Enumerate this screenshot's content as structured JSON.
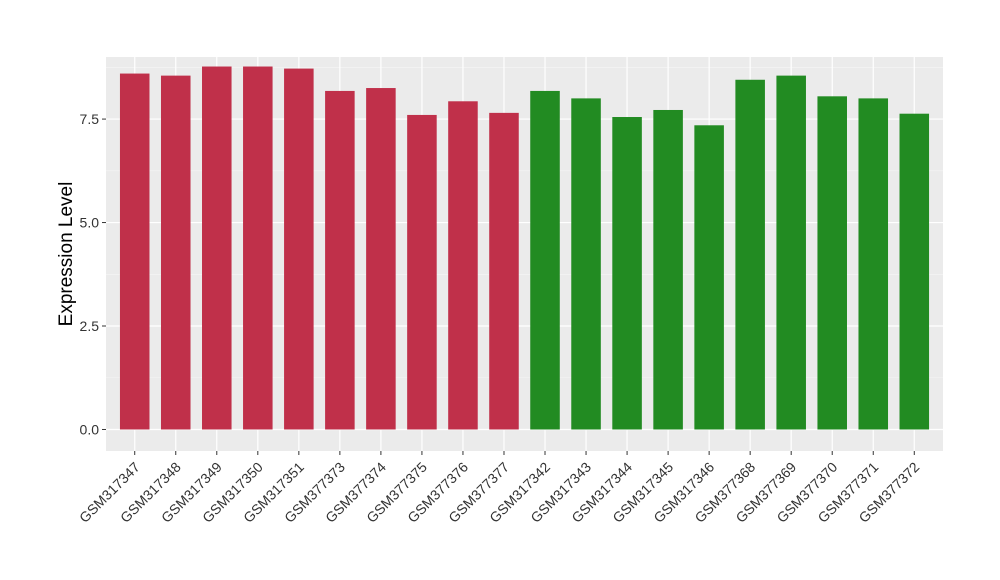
{
  "chart_data": {
    "type": "bar",
    "title": "",
    "xlabel": "",
    "ylabel": "Expression Level",
    "ylim": [
      -0.52,
      9.0
    ],
    "yticks": [
      0.0,
      2.5,
      5.0,
      7.5
    ],
    "ytick_labels": [
      "0.0",
      "2.5",
      "5.0",
      "7.5"
    ],
    "grid": true,
    "legend": "none",
    "categories": [
      "GSM317347",
      "GSM317348",
      "GSM317349",
      "GSM317350",
      "GSM317351",
      "GSM377373",
      "GSM377374",
      "GSM377375",
      "GSM377376",
      "GSM377377",
      "GSM317342",
      "GSM317343",
      "GSM317344",
      "GSM317345",
      "GSM317346",
      "GSM377368",
      "GSM377369",
      "GSM377370",
      "GSM377371",
      "GSM377372"
    ],
    "values": [
      8.6,
      8.55,
      8.77,
      8.77,
      8.72,
      8.18,
      8.25,
      7.6,
      7.93,
      7.65,
      8.18,
      8.0,
      7.55,
      7.72,
      7.35,
      8.45,
      8.55,
      8.05,
      8.0,
      7.63
    ],
    "groups": [
      {
        "color": "#C0304A",
        "members": [
          0,
          1,
          2,
          3,
          4,
          5,
          6,
          7,
          8,
          9
        ]
      },
      {
        "color": "#228B22",
        "members": [
          10,
          11,
          12,
          13,
          14,
          15,
          16,
          17,
          18,
          19
        ]
      }
    ],
    "colors": {
      "panel_background": "#EBEBEB",
      "grid_major": "#FFFFFF",
      "grid_minor": "#F5F5F5"
    }
  }
}
